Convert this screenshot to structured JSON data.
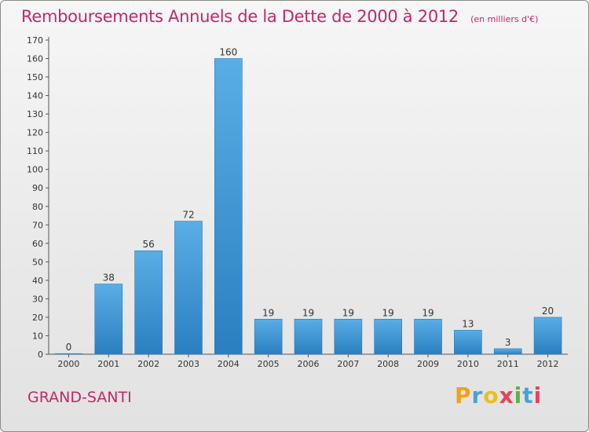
{
  "header": {
    "title": "Remboursements Annuels de la Dette de 2000 à 2012",
    "subtitle": "(en milliers d'€)"
  },
  "footer": {
    "place": "GRAND-SANTI",
    "brand": "Proxiti"
  },
  "colors": {
    "title": "#c0286a",
    "bar_top": "#5aaee6",
    "bar_bottom": "#2a7fc0"
  },
  "chart_data": {
    "type": "bar",
    "title": "Remboursements Annuels de la Dette de 2000 à 2012",
    "subtitle": "(en milliers d'€)",
    "categories": [
      "2000",
      "2001",
      "2002",
      "2003",
      "2004",
      "2005",
      "2006",
      "2007",
      "2008",
      "2009",
      "2010",
      "2011",
      "2012"
    ],
    "values": [
      0,
      38,
      56,
      72,
      160,
      19,
      19,
      19,
      19,
      19,
      13,
      3,
      20
    ],
    "xlabel": "",
    "ylabel": "",
    "ylim": [
      0,
      170
    ],
    "yticks": [
      0,
      10,
      20,
      30,
      40,
      50,
      60,
      70,
      80,
      90,
      100,
      110,
      120,
      130,
      140,
      150,
      160,
      170
    ],
    "grid": false,
    "legend": "none"
  }
}
